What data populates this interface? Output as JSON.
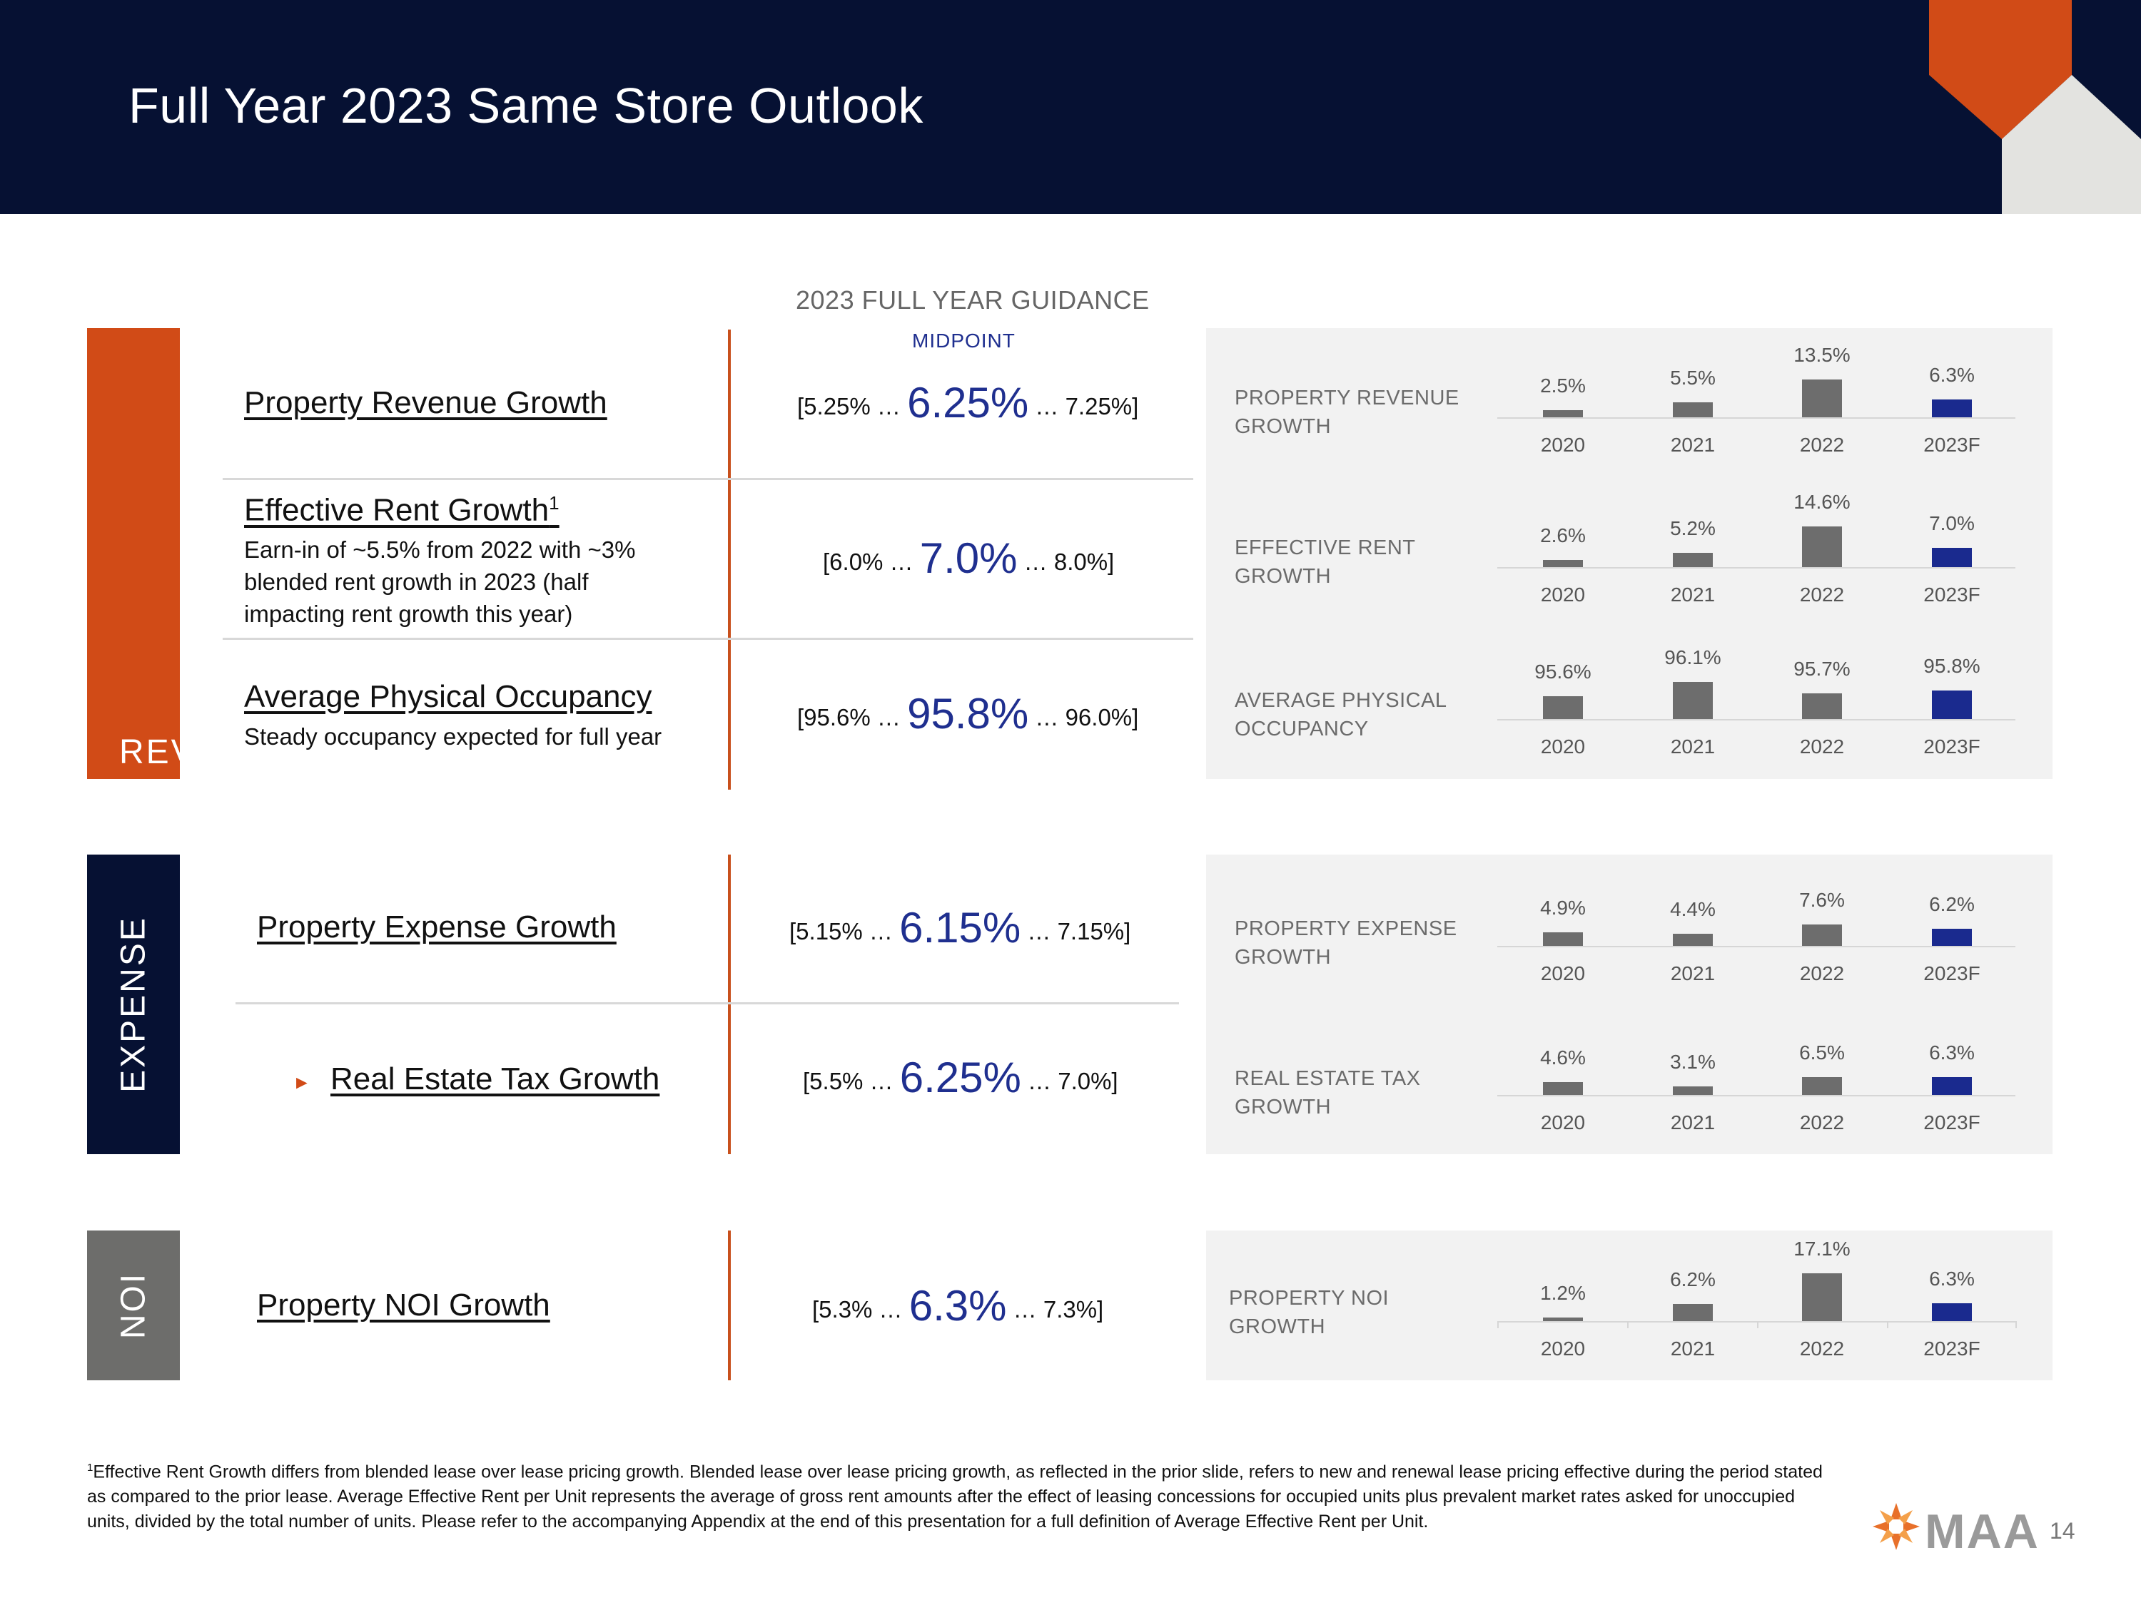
{
  "title": "Full Year 2023 Same Store Outlook",
  "colors": {
    "navy": "#061133",
    "orange": "#d14b17",
    "dark_band": "#061133",
    "gray_band": "#6d6d6b",
    "bar_gray": "#6d6d6d",
    "bar_forecast": "#1a2a8e"
  },
  "guidance": {
    "heading": "2023 FULL YEAR GUIDANCE",
    "midpoint_label": "MIDPOINT"
  },
  "bands": {
    "revenue": "REVENUE",
    "expense": "EXPENSE",
    "noi": "NOI"
  },
  "metrics": [
    {
      "title": "Property Revenue Growth",
      "note": "",
      "range_low": "[5.25% …",
      "midpoint": "6.25%",
      "range_high": "… 7.25%]"
    },
    {
      "title": "Effective Rent Growth",
      "superscript": "1",
      "note": "Earn-in of ~5.5% from 2022 with ~3% blended rent growth in 2023 (half impacting rent growth this year)",
      "range_low": "[6.0% …",
      "midpoint": "7.0%",
      "range_high": "… 8.0%]"
    },
    {
      "title": "Average Physical Occupancy",
      "note": "Steady occupancy expected for full year",
      "range_low": "[95.6% …",
      "midpoint": "95.8%",
      "range_high": "… 96.0%]"
    },
    {
      "title": "Property Expense Growth",
      "note": "",
      "range_low": "[5.15% …",
      "midpoint": "6.15%",
      "range_high": "… 7.15%]"
    },
    {
      "title": "Real Estate Tax Growth",
      "note": "",
      "range_low": "[5.5% …",
      "midpoint": "6.25%",
      "range_high": "… 7.0%]"
    },
    {
      "title": "Property NOI Growth",
      "note": "",
      "range_low": "[5.3% …",
      "midpoint": "6.3%",
      "range_high": "… 7.3%]"
    }
  ],
  "chart_data": [
    {
      "type": "bar",
      "title": "PROPERTY REVENUE GROWTH",
      "categories": [
        "2020",
        "2021",
        "2022",
        "2023F"
      ],
      "values": [
        2.5,
        5.5,
        13.5,
        6.3
      ],
      "labels": [
        "2.5%",
        "5.5%",
        "13.5%",
        "6.3%"
      ]
    },
    {
      "type": "bar",
      "title": "EFFECTIVE RENT GROWTH",
      "categories": [
        "2020",
        "2021",
        "2022",
        "2023F"
      ],
      "values": [
        2.6,
        5.2,
        14.6,
        7.0
      ],
      "labels": [
        "2.6%",
        "5.2%",
        "14.6%",
        "7.0%"
      ]
    },
    {
      "type": "bar",
      "title": "AVERAGE PHYSICAL OCCUPANCY",
      "categories": [
        "2020",
        "2021",
        "2022",
        "2023F"
      ],
      "values": [
        95.6,
        96.1,
        95.7,
        95.8
      ],
      "labels": [
        "95.6%",
        "96.1%",
        "95.7%",
        "95.8%"
      ]
    },
    {
      "type": "bar",
      "title": "PROPERTY EXPENSE GROWTH",
      "categories": [
        "2020",
        "2021",
        "2022",
        "2023F"
      ],
      "values": [
        4.9,
        4.4,
        7.6,
        6.2
      ],
      "labels": [
        "4.9%",
        "4.4%",
        "7.6%",
        "6.2%"
      ]
    },
    {
      "type": "bar",
      "title": "REAL ESTATE TAX GROWTH",
      "categories": [
        "2020",
        "2021",
        "2022",
        "2023F"
      ],
      "values": [
        4.6,
        3.1,
        6.5,
        6.3
      ],
      "labels": [
        "4.6%",
        "3.1%",
        "6.5%",
        "6.3%"
      ]
    },
    {
      "type": "bar",
      "title": "PROPERTY NOI GROWTH",
      "categories": [
        "2020",
        "2021",
        "2022",
        "2023F"
      ],
      "values": [
        1.2,
        6.2,
        17.1,
        6.3
      ],
      "labels": [
        "1.2%",
        "6.2%",
        "17.1%",
        "6.3%"
      ]
    }
  ],
  "footnote": {
    "superscript": "1",
    "text": "Effective Rent Growth differs from blended lease over lease pricing growth. Blended lease over lease pricing growth, as reflected in the prior slide, refers to new and renewal lease pricing effective during the period stated as compared to the prior lease. Average Effective Rent per Unit represents the average of gross rent amounts after the effect of leasing concessions for occupied units plus prevalent market rates asked for unoccupied units, divided by the total number of units. Please refer to the accompanying Appendix at the end of this presentation for a full definition of Average Effective Rent per Unit."
  },
  "logo": {
    "text": "MAA",
    "icon": "maa-logo-icon"
  },
  "page_number": "14"
}
